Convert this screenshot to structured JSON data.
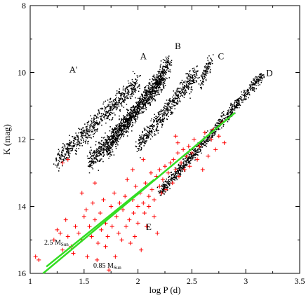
{
  "chart_data": {
    "type": "scatter",
    "title": "",
    "xlabel": "log P (d)",
    "ylabel": "K (mag)",
    "xlim": [
      1.0,
      3.5
    ],
    "ylim": [
      16,
      8
    ],
    "y_inverted": true,
    "xticks": [
      "1",
      "1.5",
      "2",
      "2.5",
      "3",
      "3.5"
    ],
    "yticks": [
      "8",
      "10",
      "12",
      "14",
      "16"
    ],
    "colors": {
      "black_points": "#000000",
      "red_points": "#ff0000",
      "fit_lines": "#33dd22"
    },
    "sequence_labels": [
      {
        "text": "A'",
        "x": 1.4,
        "y": 10.0
      },
      {
        "text": "A",
        "x": 2.05,
        "y": 9.6
      },
      {
        "text": "B",
        "x": 2.37,
        "y": 9.3
      },
      {
        "text": "C",
        "x": 2.77,
        "y": 9.6
      },
      {
        "text": "D",
        "x": 3.22,
        "y": 10.1
      },
      {
        "text": "E",
        "x": 2.1,
        "y": 14.7
      }
    ],
    "fit_lines": [
      {
        "label": "2.5 M",
        "label_sub": "Sun",
        "x": [
          1.15,
          2.15
        ],
        "y": [
          15.8,
          13.2
        ]
      },
      {
        "label": "0.85 M",
        "label_sub": "Sun",
        "x": [
          1.12,
          2.9
        ],
        "y": [
          16.0,
          11.2
        ]
      }
    ],
    "series": [
      {
        "marker": "dot",
        "color": "#000000",
        "clusters": [
          {
            "x0": 1.25,
            "y0": 12.6,
            "x1": 2.0,
            "y1": 10.3,
            "spread": 0.33,
            "count": 700
          },
          {
            "x0": 1.55,
            "y0": 12.7,
            "x1": 2.25,
            "y1": 10.2,
            "spread": 0.33,
            "count": 800
          },
          {
            "x0": 1.7,
            "y0": 12.4,
            "x1": 2.3,
            "y1": 9.7,
            "spread": 0.3,
            "count": 700
          },
          {
            "x0": 2.0,
            "y0": 12.2,
            "x1": 2.55,
            "y1": 10.0,
            "spread": 0.3,
            "count": 550
          },
          {
            "x0": 2.58,
            "y0": 10.4,
            "x1": 2.68,
            "y1": 9.6,
            "spread": 0.18,
            "count": 100
          },
          {
            "x0": 2.2,
            "y0": 13.6,
            "x1": 3.15,
            "y1": 10.1,
            "spread": 0.17,
            "count": 850
          }
        ]
      },
      {
        "marker": "plus",
        "color": "#ff0000",
        "points": [
          [
            1.05,
            15.5
          ],
          [
            1.08,
            15.6
          ],
          [
            1.22,
            15.0
          ],
          [
            1.25,
            14.7
          ],
          [
            1.28,
            14.8
          ],
          [
            1.3,
            15.3
          ],
          [
            1.33,
            14.4
          ],
          [
            1.35,
            14.9
          ],
          [
            1.38,
            15.2
          ],
          [
            1.4,
            15.4
          ],
          [
            1.42,
            14.6
          ],
          [
            1.45,
            14.8
          ],
          [
            1.48,
            15.0
          ],
          [
            1.5,
            14.3
          ],
          [
            1.52,
            14.1
          ],
          [
            1.53,
            15.5
          ],
          [
            1.55,
            14.6
          ],
          [
            1.57,
            14.9
          ],
          [
            1.58,
            13.9
          ],
          [
            1.6,
            14.4
          ],
          [
            1.62,
            15.6
          ],
          [
            1.63,
            15.1
          ],
          [
            1.65,
            14.2
          ],
          [
            1.66,
            14.7
          ],
          [
            1.68,
            13.8
          ],
          [
            1.7,
            14.5
          ],
          [
            1.7,
            15.2
          ],
          [
            1.72,
            14.9
          ],
          [
            1.73,
            15.9
          ],
          [
            1.75,
            14.0
          ],
          [
            1.76,
            14.6
          ],
          [
            1.78,
            13.6
          ],
          [
            1.79,
            15.5
          ],
          [
            1.8,
            14.3
          ],
          [
            1.82,
            14.8
          ],
          [
            1.83,
            13.9
          ],
          [
            1.85,
            15.0
          ],
          [
            1.86,
            14.1
          ],
          [
            1.88,
            13.7
          ],
          [
            1.89,
            14.6
          ],
          [
            1.9,
            13.2
          ],
          [
            1.92,
            14.4
          ],
          [
            1.93,
            15.1
          ],
          [
            1.95,
            13.8
          ],
          [
            1.96,
            14.2
          ],
          [
            1.97,
            14.9
          ],
          [
            1.98,
            13.4
          ],
          [
            2.0,
            14.0
          ],
          [
            2.0,
            14.5
          ],
          [
            2.02,
            13.6
          ],
          [
            2.03,
            15.3
          ],
          [
            2.05,
            13.9
          ],
          [
            2.06,
            14.2
          ],
          [
            2.07,
            13.3
          ],
          [
            2.08,
            14.6
          ],
          [
            2.1,
            13.7
          ],
          [
            2.1,
            14.0
          ],
          [
            2.12,
            13.0
          ],
          [
            2.13,
            13.5
          ],
          [
            2.15,
            14.3
          ],
          [
            2.15,
            13.8
          ],
          [
            2.17,
            13.1
          ],
          [
            2.18,
            14.8
          ],
          [
            2.2,
            13.4
          ],
          [
            2.2,
            12.9
          ],
          [
            2.22,
            13.6
          ],
          [
            2.23,
            13.2
          ],
          [
            2.25,
            12.8
          ],
          [
            2.26,
            13.5
          ],
          [
            2.28,
            13.0
          ],
          [
            2.3,
            12.7
          ],
          [
            2.32,
            13.3
          ],
          [
            2.33,
            12.6
          ],
          [
            2.35,
            12.9
          ],
          [
            2.37,
            12.4
          ],
          [
            2.38,
            13.1
          ],
          [
            2.4,
            12.7
          ],
          [
            2.42,
            12.3
          ],
          [
            2.43,
            12.9
          ],
          [
            2.45,
            12.5
          ],
          [
            2.47,
            12.2
          ],
          [
            2.48,
            12.8
          ],
          [
            2.5,
            12.4
          ],
          [
            2.52,
            12.0
          ],
          [
            2.55,
            12.6
          ],
          [
            2.57,
            12.2
          ],
          [
            2.6,
            12.9
          ],
          [
            2.62,
            11.8
          ],
          [
            2.65,
            12.5
          ],
          [
            2.68,
            12.0
          ],
          [
            2.7,
            11.7
          ],
          [
            2.72,
            12.3
          ],
          [
            2.75,
            11.9
          ],
          [
            2.78,
            11.5
          ],
          [
            2.8,
            12.1
          ],
          [
            2.35,
            11.9
          ],
          [
            2.37,
            12.1
          ],
          [
            1.35,
            12.6
          ],
          [
            1.3,
            12.7
          ],
          [
            1.48,
            13.6
          ],
          [
            1.6,
            13.3
          ],
          [
            1.95,
            12.9
          ],
          [
            2.05,
            12.6
          ]
        ]
      }
    ]
  }
}
